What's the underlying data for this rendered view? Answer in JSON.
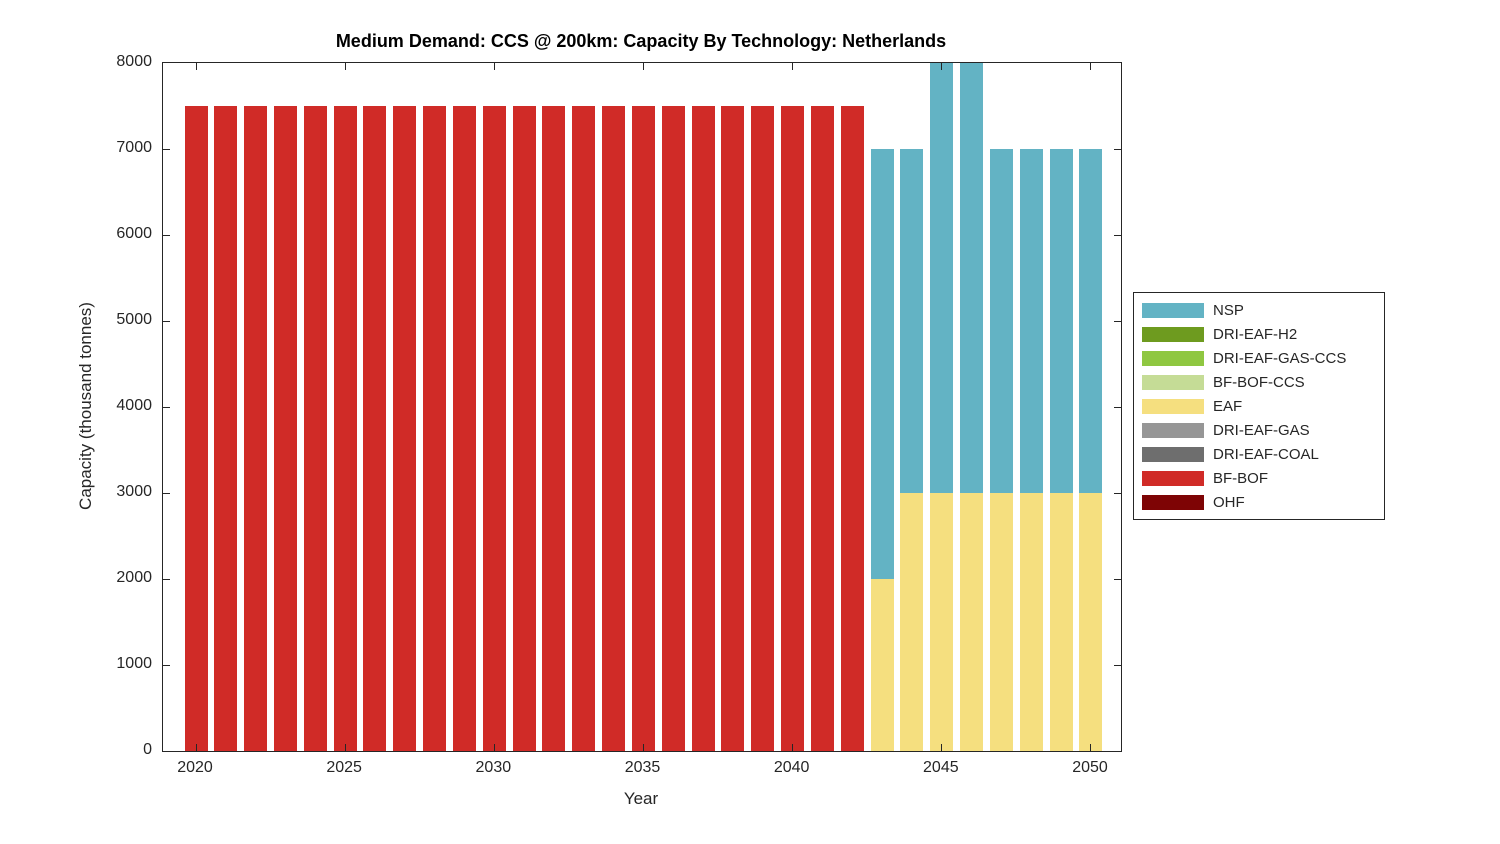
{
  "chart_data": {
    "type": "bar",
    "stacked": true,
    "title": "Medium Demand: CCS @ 200km: Capacity By Technology: Netherlands",
    "xlabel": "Year",
    "ylabel": "Capacity (thousand tonnes)",
    "ylim": [
      0,
      8000
    ],
    "yticks": [
      0,
      1000,
      2000,
      3000,
      4000,
      5000,
      6000,
      7000,
      8000
    ],
    "xticks": [
      2020,
      2025,
      2030,
      2035,
      2040,
      2045,
      2050
    ],
    "x": [
      2020,
      2021,
      2022,
      2023,
      2024,
      2025,
      2026,
      2027,
      2028,
      2029,
      2030,
      2031,
      2032,
      2033,
      2034,
      2035,
      2036,
      2037,
      2038,
      2039,
      2040,
      2041,
      2042,
      2043,
      2044,
      2045,
      2046,
      2047,
      2048,
      2049,
      2050
    ],
    "series": [
      {
        "name": "BF-BOF",
        "color": "#D02B27",
        "values": [
          7500,
          7500,
          7500,
          7500,
          7500,
          7500,
          7500,
          7500,
          7500,
          7500,
          7500,
          7500,
          7500,
          7500,
          7500,
          7500,
          7500,
          7500,
          7500,
          7500,
          7500,
          7500,
          7500,
          0,
          0,
          0,
          0,
          0,
          0,
          0,
          0
        ]
      },
      {
        "name": "EAF",
        "color": "#F5DF7F",
        "values": [
          0,
          0,
          0,
          0,
          0,
          0,
          0,
          0,
          0,
          0,
          0,
          0,
          0,
          0,
          0,
          0,
          0,
          0,
          0,
          0,
          0,
          0,
          0,
          2000,
          3000,
          3000,
          3000,
          3000,
          3000,
          3000,
          3000
        ]
      },
      {
        "name": "NSP",
        "color": "#63B3C4",
        "values": [
          0,
          0,
          0,
          0,
          0,
          0,
          0,
          0,
          0,
          0,
          0,
          0,
          0,
          0,
          0,
          0,
          0,
          0,
          0,
          0,
          0,
          0,
          0,
          5000,
          4000,
          5000,
          5000,
          4000,
          4000,
          4000,
          4000
        ]
      }
    ],
    "grid": false,
    "box": true,
    "tick_direction": "in",
    "legend_position": "right",
    "legend": [
      {
        "label": "NSP",
        "color": "#63B3C4"
      },
      {
        "label": "DRI-EAF-H2",
        "color": "#6E9B1F"
      },
      {
        "label": "DRI-EAF-GAS-CCS",
        "color": "#8FC741"
      },
      {
        "label": "BF-BOF-CCS",
        "color": "#C5DC96"
      },
      {
        "label": "EAF",
        "color": "#F5DF7F"
      },
      {
        "label": "DRI-EAF-GAS",
        "color": "#969696"
      },
      {
        "label": "DRI-EAF-COAL",
        "color": "#6E6E6E"
      },
      {
        "label": "BF-BOF",
        "color": "#D02B27"
      },
      {
        "label": "OHF",
        "color": "#7E0405"
      }
    ]
  }
}
